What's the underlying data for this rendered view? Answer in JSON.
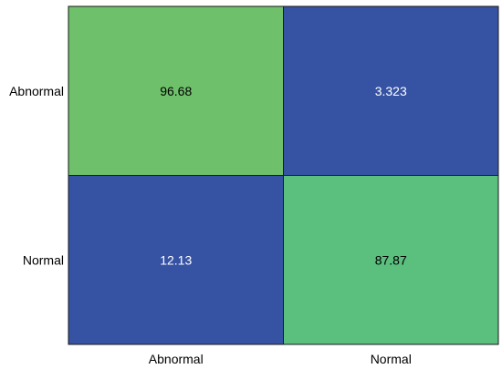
{
  "chart_data": {
    "type": "heatmap",
    "title": "",
    "xlabel": "",
    "ylabel": "",
    "x_categories": [
      "Abnormal",
      "Normal"
    ],
    "y_categories": [
      "Abnormal",
      "Normal"
    ],
    "values": [
      [
        96.68,
        3.323
      ],
      [
        12.13,
        87.87
      ]
    ],
    "value_labels": [
      [
        "96.68",
        "3.323"
      ],
      [
        "12.13",
        "87.87"
      ]
    ],
    "colors": {
      "high": "#6fc06b",
      "high_alt": "#5bbf7e",
      "low": "#3652a3",
      "border": "#1a1a1a",
      "text_on_high": "#000000",
      "text_on_low": "#ffffff"
    }
  }
}
